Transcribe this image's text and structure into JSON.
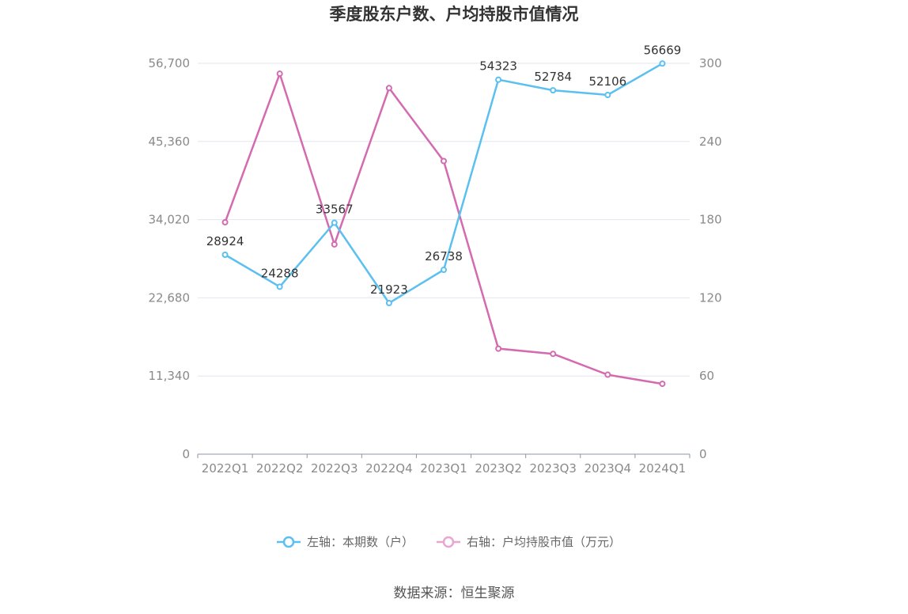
{
  "chart_data": {
    "type": "line",
    "title": "季度股东户数、户均持股市值情况",
    "categories": [
      "2022Q1",
      "2022Q2",
      "2022Q3",
      "2022Q4",
      "2023Q1",
      "2023Q2",
      "2023Q3",
      "2023Q4",
      "2024Q1"
    ],
    "left_axis": {
      "min": 0,
      "max": 56700,
      "ticks": [
        "0",
        "11,340",
        "22,680",
        "34,020",
        "45,360",
        "56,700"
      ]
    },
    "right_axis": {
      "min": 0,
      "max": 300,
      "ticks": [
        "0",
        "60",
        "120",
        "180",
        "240",
        "300"
      ]
    },
    "grid": true,
    "legend_position": "bottom",
    "series": [
      {
        "name": "左轴：本期数（户）",
        "axis": "left",
        "color": "#5bc0f0",
        "values": [
          28924,
          24288,
          33567,
          21923,
          26738,
          54323,
          52784,
          52106,
          56669
        ],
        "labels": [
          "28924",
          "24288",
          "33567",
          "21923",
          "26738",
          "54323",
          "52784",
          "52106",
          "56669"
        ]
      },
      {
        "name": "右轴：户均持股市值（万元）",
        "axis": "right",
        "color": "#d46aaf",
        "legend_color": "#e8a6d0",
        "values": [
          178,
          292,
          161,
          281,
          225,
          81,
          77,
          61,
          54
        ]
      }
    ],
    "source": "数据来源：恒生聚源"
  }
}
